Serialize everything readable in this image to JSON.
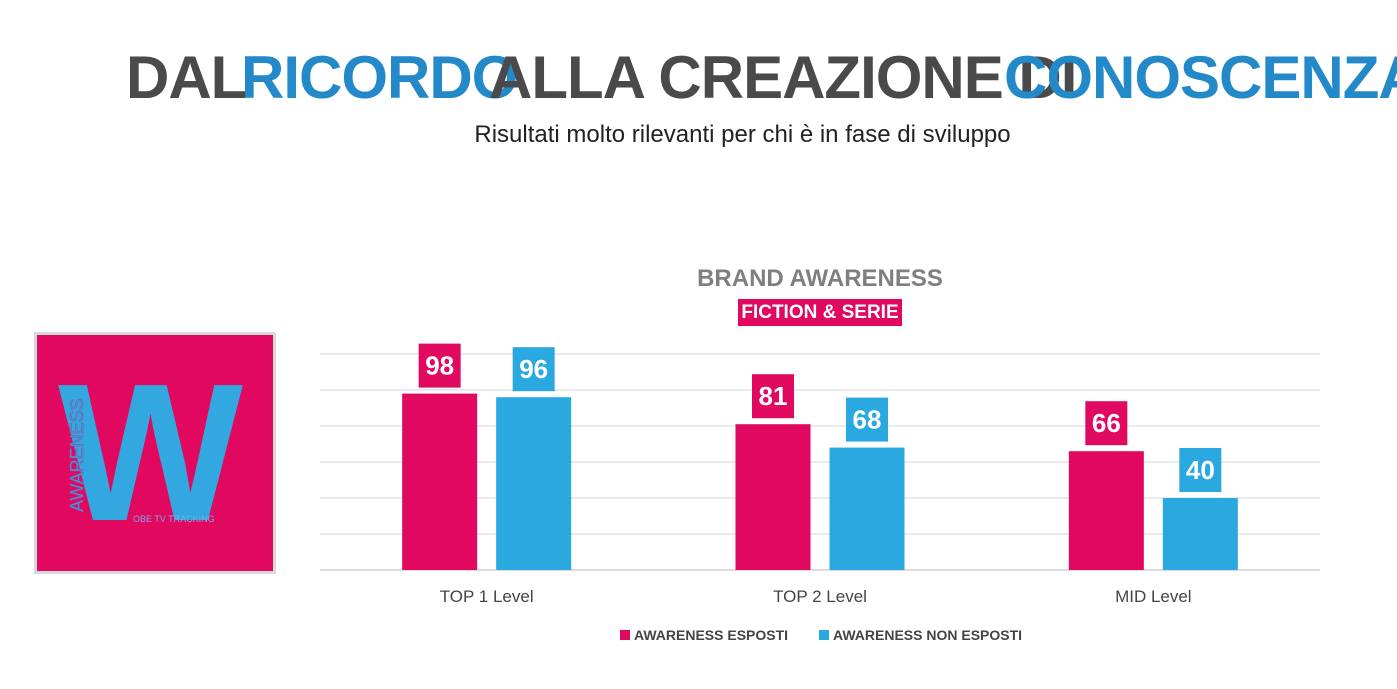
{
  "heading": {
    "part1": "DAL",
    "part2": "RICORDO",
    "part3": "ALLA CREAZIONE DI",
    "part4": "CONOSCENZA",
    "subtitle": "Risultati molto rilevanti per chi è in fase di sviluppo"
  },
  "logo": {
    "letter": "W",
    "vertical_text": "AWARENESS",
    "small_text": "OBE TV TRACKING"
  },
  "colors": {
    "gray": "#4a4a4a",
    "blue": "#2389c9",
    "pink": "#e0095f",
    "light_blue": "#2aa8e0"
  },
  "chart_data": {
    "type": "bar",
    "title": "BRAND AWARENESS",
    "subtitle": "FICTION & SERIE",
    "categories": [
      "TOP 1 Level",
      "TOP 2 Level",
      "MID Level"
    ],
    "series": [
      {
        "name": "AWARENESS ESPOSTI",
        "color": "#e0095f",
        "values": [
          98,
          81,
          66
        ]
      },
      {
        "name": "AWARENESS NON ESPOSTI",
        "color": "#2aa8e0",
        "values": [
          96,
          68,
          40
        ]
      }
    ],
    "ylim": [
      0,
      120
    ],
    "grid": true,
    "legend": "bottom"
  }
}
